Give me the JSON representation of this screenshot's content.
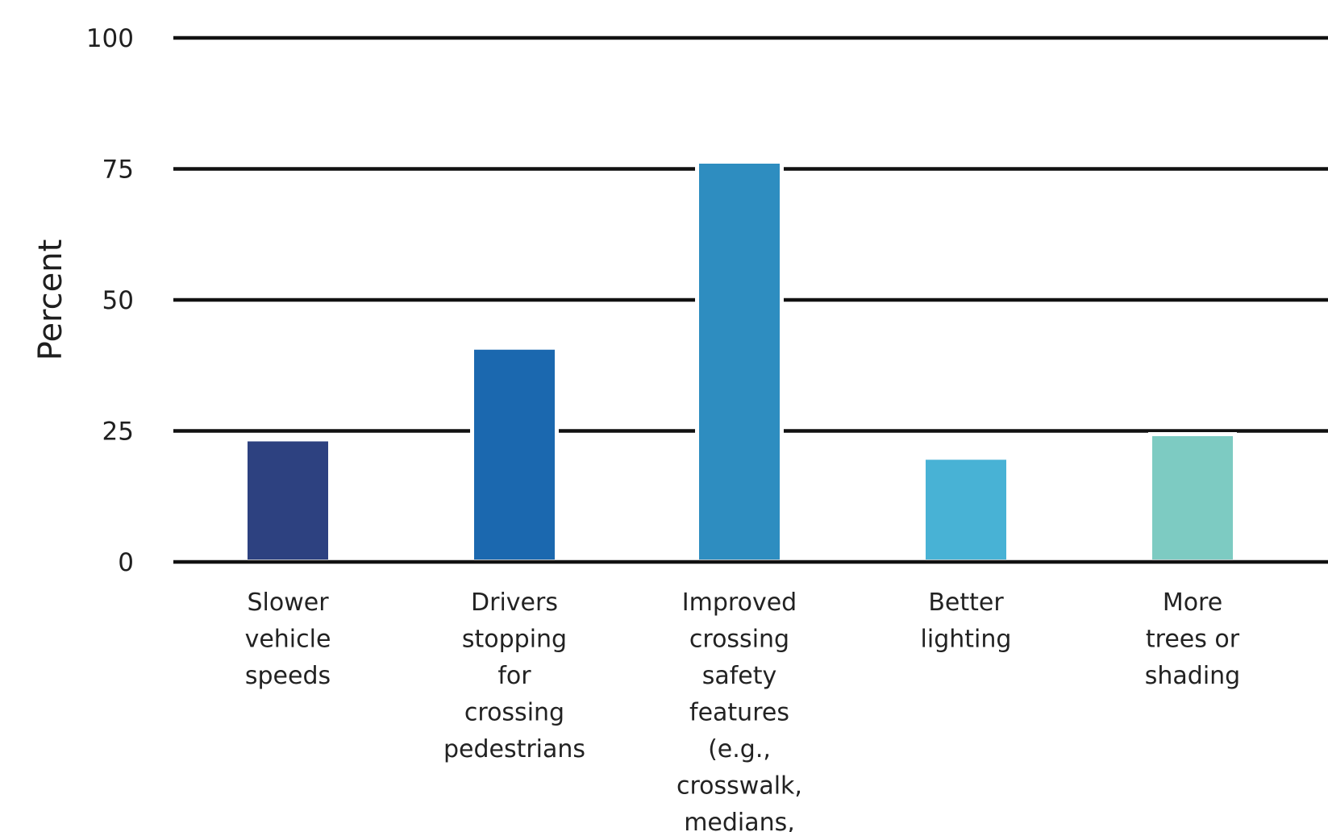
{
  "chart_data": {
    "type": "bar",
    "title": "",
    "xlabel": "",
    "ylabel": "Percent",
    "ylim": [
      0,
      100
    ],
    "yticks": [
      0,
      25,
      50,
      75,
      100
    ],
    "grid": true,
    "categories": [
      "Slower vehicle speeds",
      "Drivers stopping for crossing pedestrians",
      "Improved crossing safety features (e.g., crosswalk, medians,",
      "Better lighting",
      "More trees or shading"
    ],
    "category_lines": [
      [
        "Slower",
        "vehicle",
        "speeds"
      ],
      [
        "Drivers",
        "stopping",
        "for",
        "crossing",
        "pedestrians"
      ],
      [
        "Improved",
        "crossing",
        "safety",
        "features",
        "(e.g.,",
        "crosswalk,",
        "medians,"
      ],
      [
        "Better",
        "lighting"
      ],
      [
        "More",
        "trees or",
        "shading"
      ]
    ],
    "values": [
      23,
      40.5,
      76,
      19.5,
      24
    ],
    "colors": [
      "#2d4180",
      "#1b68af",
      "#2e8dc0",
      "#48b2d5",
      "#7dcbc2"
    ]
  }
}
